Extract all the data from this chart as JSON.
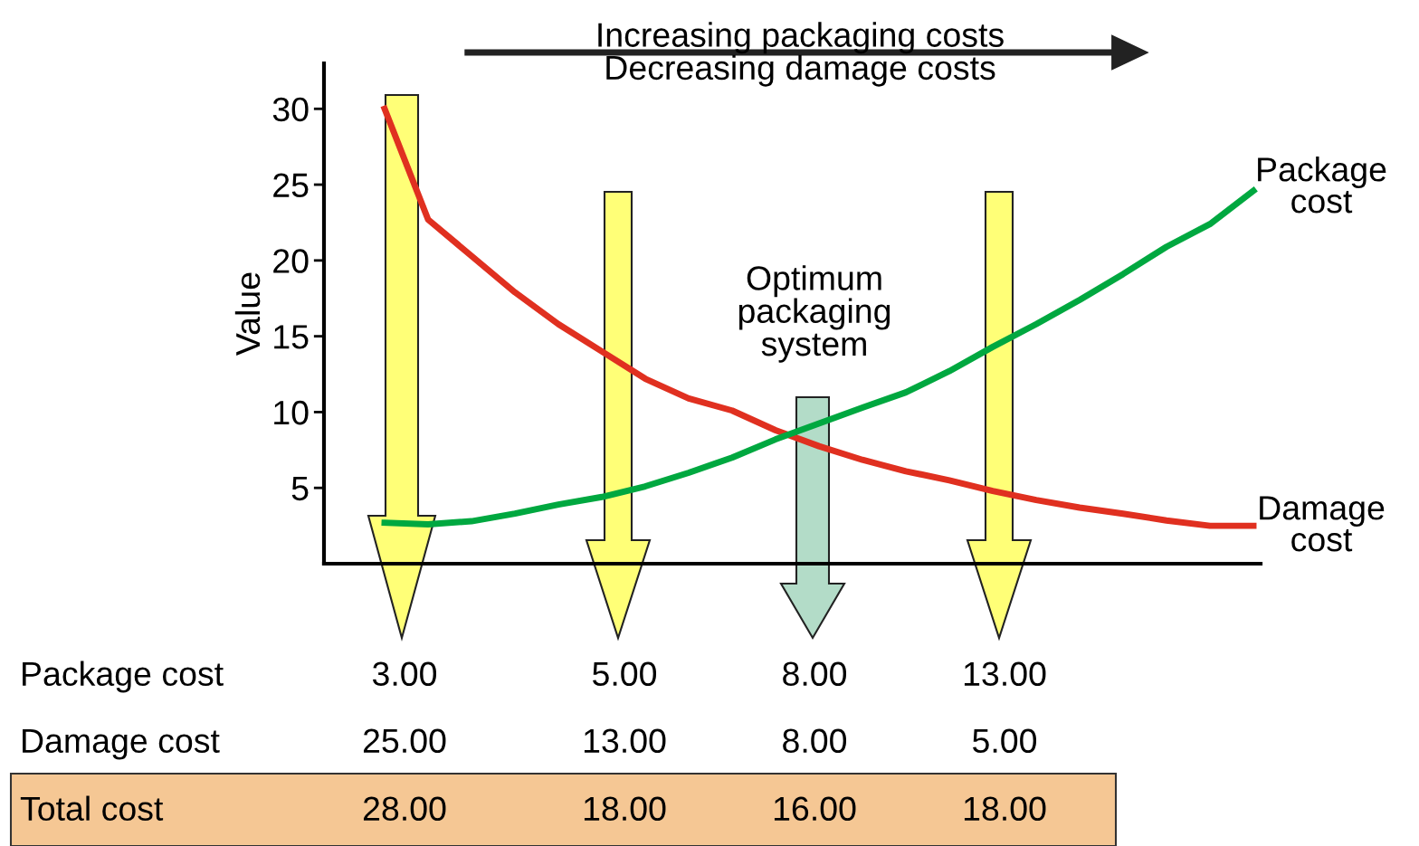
{
  "chart_data": {
    "type": "line",
    "ylabel": "Value",
    "categories": [
      null,
      null,
      null,
      null,
      null,
      null,
      null,
      null,
      null,
      null,
      null,
      null,
      null,
      null,
      null,
      null,
      null,
      null,
      null,
      null,
      null
    ],
    "series": [
      {
        "name": "Damage cost",
        "color": "#e03020",
        "values": [
          30,
          22.7,
          20.3,
          17.9,
          15.8,
          14.0,
          12.2,
          10.9,
          10.1,
          8.8,
          7.75,
          6.85,
          6.1,
          5.5,
          4.8,
          4.2,
          3.7,
          3.3,
          2.85,
          2.5,
          2.5
        ]
      },
      {
        "name": "Package cost",
        "color": "#00a840",
        "values": [
          2.7,
          2.6,
          2.8,
          3.3,
          3.9,
          4.4,
          5.1,
          6.0,
          7.0,
          8.2,
          9.25,
          10.3,
          11.3,
          12.7,
          14.3,
          15.8,
          17.4,
          19.1,
          20.9,
          22.4,
          24.6
        ]
      }
    ],
    "ylim": [
      0,
      33
    ],
    "yticks": [
      5,
      10,
      15,
      20,
      25,
      30
    ],
    "tick_labels": "y",
    "grid": false,
    "legend": false,
    "marker": "none",
    "line_style": "solid",
    "annotations": [
      "Increasing packaging costs\nDecreasing damage costs",
      "Optimum\npackaging\nsystem",
      "Package cost",
      "3.00",
      "5.00",
      "8.00",
      "13.00",
      "Damage cost",
      "25.00",
      "13.00",
      "8.00",
      "5.00",
      "Total cost",
      "28.00",
      "18.00",
      "16.00",
      "18.00"
    ]
  }
}
